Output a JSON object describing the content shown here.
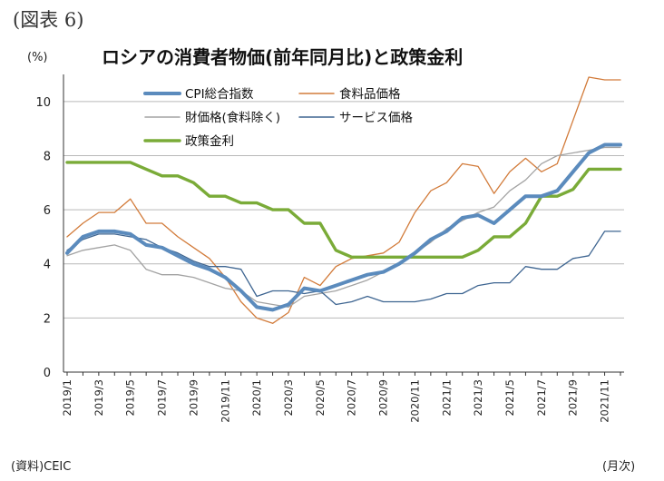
{
  "figure_label": "(図表 6)",
  "title": "ロシアの消費者物価(前年同月比)と政策金利",
  "y_unit": "(%)",
  "x_unit": "(月次)",
  "source": "(資料)CEIC",
  "chart_data": {
    "type": "line",
    "title": "ロシアの消費者物価(前年同月比)と政策金利",
    "ylabel": "(%)",
    "xlabel": "(月次)",
    "ylim": [
      0,
      11
    ],
    "yticks": [
      0,
      2,
      4,
      6,
      8,
      10
    ],
    "grid": "horizontal",
    "legend_position": "top-left",
    "x": [
      "2019/1",
      "2019/2",
      "2019/3",
      "2019/4",
      "2019/5",
      "2019/6",
      "2019/7",
      "2019/8",
      "2019/9",
      "2019/10",
      "2019/11",
      "2019/12",
      "2020/1",
      "2020/2",
      "2020/3",
      "2020/4",
      "2020/5",
      "2020/6",
      "2020/7",
      "2020/8",
      "2020/9",
      "2020/10",
      "2020/11",
      "2020/12",
      "2021/1",
      "2021/2",
      "2021/3",
      "2021/4",
      "2021/5",
      "2021/6",
      "2021/7",
      "2021/8",
      "2021/9",
      "2021/10",
      "2021/11",
      "2021/12"
    ],
    "xtick_labels": [
      "2019/1",
      "2019/3",
      "2019/5",
      "2019/7",
      "2019/9",
      "2019/11",
      "2020/1",
      "2020/3",
      "2020/5",
      "2020/7",
      "2020/9",
      "2020/11",
      "2021/1",
      "2021/3",
      "2021/5",
      "2021/7",
      "2021/9",
      "2021/11"
    ],
    "series": [
      {
        "name": "CPI総合指数",
        "color": "#5b8bbd",
        "width": 4,
        "values": [
          4.4,
          5.0,
          5.2,
          5.2,
          5.1,
          4.7,
          4.6,
          4.3,
          4.0,
          3.8,
          3.5,
          3.0,
          2.4,
          2.3,
          2.5,
          3.1,
          3.0,
          3.2,
          3.4,
          3.6,
          3.7,
          4.0,
          4.4,
          4.9,
          5.2,
          5.7,
          5.8,
          5.5,
          6.0,
          6.5,
          6.5,
          6.7,
          7.4,
          8.1,
          8.4,
          8.4
        ]
      },
      {
        "name": "食料品価格",
        "color": "#d27b3a",
        "width": 1.3,
        "values": [
          5.0,
          5.5,
          5.9,
          5.9,
          6.4,
          5.5,
          5.5,
          5.0,
          4.6,
          4.2,
          3.5,
          2.6,
          2.0,
          1.8,
          2.2,
          3.5,
          3.2,
          3.9,
          4.2,
          4.3,
          4.4,
          4.8,
          5.9,
          6.7,
          7.0,
          7.7,
          7.6,
          6.6,
          7.4,
          7.9,
          7.4,
          7.7,
          9.3,
          10.9,
          10.8,
          10.8
        ]
      },
      {
        "name": "財価格(食料除く)",
        "color": "#a3a3a3",
        "width": 1.3,
        "values": [
          4.3,
          4.5,
          4.6,
          4.7,
          4.5,
          3.8,
          3.6,
          3.6,
          3.5,
          3.3,
          3.1,
          3.0,
          2.6,
          2.5,
          2.4,
          2.8,
          2.9,
          3.0,
          3.2,
          3.4,
          3.7,
          4.0,
          4.4,
          4.8,
          5.3,
          5.6,
          5.9,
          6.1,
          6.7,
          7.1,
          7.7,
          8.0,
          8.1,
          8.2,
          8.3,
          8.3
        ]
      },
      {
        "name": "サービス価格",
        "color": "#3e6591",
        "width": 1.3,
        "values": [
          4.5,
          4.9,
          5.1,
          5.1,
          5.0,
          4.9,
          4.6,
          4.4,
          4.1,
          3.9,
          3.9,
          3.8,
          2.8,
          3.0,
          3.0,
          2.9,
          3.0,
          2.5,
          2.6,
          2.8,
          2.6,
          2.6,
          2.6,
          2.7,
          2.9,
          2.9,
          3.2,
          3.3,
          3.3,
          3.9,
          3.8,
          3.8,
          4.2,
          4.3,
          5.2,
          5.2
        ]
      },
      {
        "name": "政策金利",
        "color": "#7aab38",
        "width": 3.4,
        "values": [
          7.75,
          7.75,
          7.75,
          7.75,
          7.75,
          7.5,
          7.25,
          7.25,
          7.0,
          6.5,
          6.5,
          6.25,
          6.25,
          6.0,
          6.0,
          5.5,
          5.5,
          4.5,
          4.25,
          4.25,
          4.25,
          4.25,
          4.25,
          4.25,
          4.25,
          4.25,
          4.5,
          5.0,
          5.0,
          5.5,
          6.5,
          6.5,
          6.75,
          7.5,
          7.5,
          7.5
        ]
      }
    ]
  }
}
